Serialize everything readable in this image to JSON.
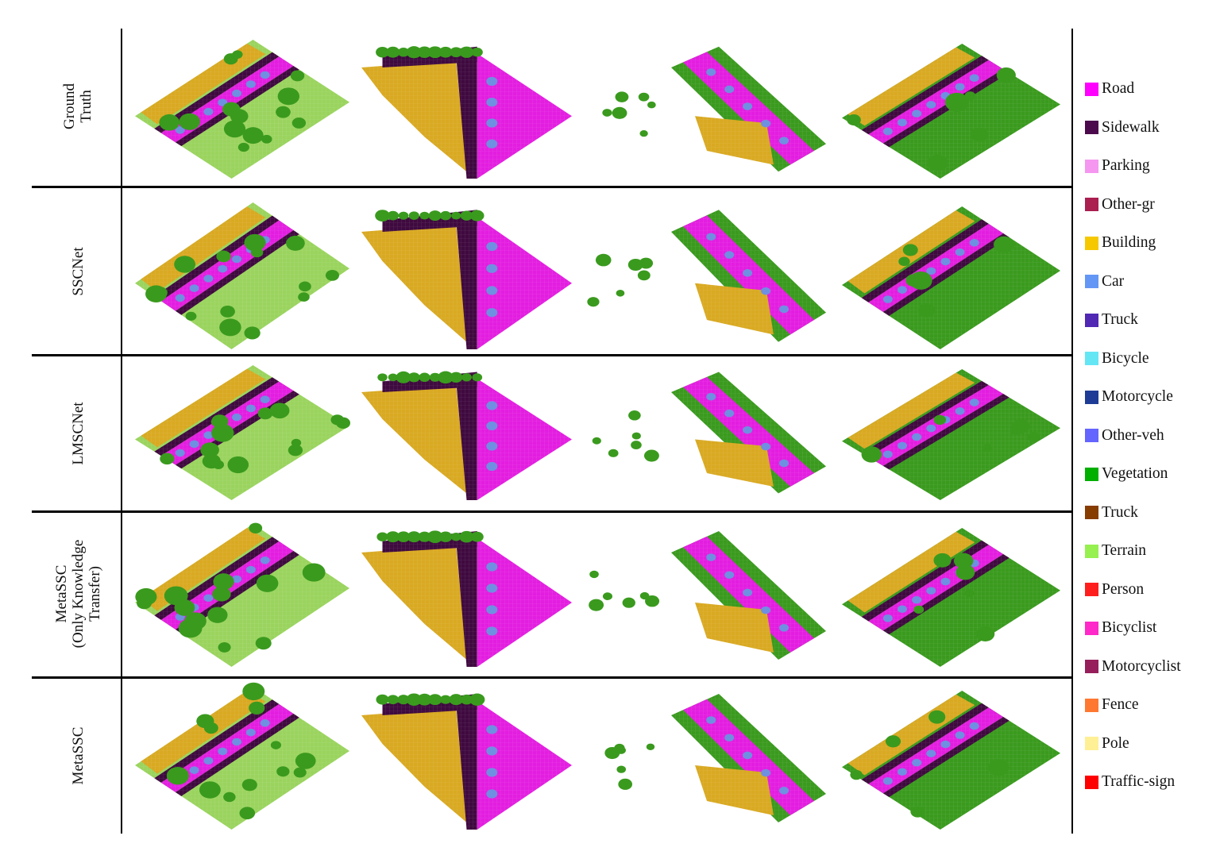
{
  "rows": [
    {
      "label_lines": [
        "Ground",
        "Truth"
      ]
    },
    {
      "label_lines": [
        "SSCNet"
      ]
    },
    {
      "label_lines": [
        "LMSCNet"
      ]
    },
    {
      "label_lines": [
        "MetaSSC",
        "(Only Knowledge",
        "Transfer)"
      ]
    },
    {
      "label_lines": [
        "MetaSSC"
      ]
    }
  ],
  "legend": [
    {
      "label": "Road",
      "color": "#ff00ff"
    },
    {
      "label": "Sidewalk",
      "color": "#4b0a4b"
    },
    {
      "label": "Parking",
      "color": "#f596f0"
    },
    {
      "label": "Other-gr",
      "color": "#aa1e50"
    },
    {
      "label": "Building",
      "color": "#f5c800"
    },
    {
      "label": "Car",
      "color": "#6496f5"
    },
    {
      "label": "Truck",
      "color": "#5028b4"
    },
    {
      "label": "Bicycle",
      "color": "#64e6f5"
    },
    {
      "label": "Motorcycle",
      "color": "#1e3c96"
    },
    {
      "label": "Other-veh",
      "color": "#6464ff"
    },
    {
      "label": "Vegetation",
      "color": "#00af00"
    },
    {
      "label": "Truck",
      "color": "#873c00"
    },
    {
      "label": "Terrain",
      "color": "#96f050"
    },
    {
      "label": "Person",
      "color": "#ff1e1e"
    },
    {
      "label": "Bicyclist",
      "color": "#ff28c8"
    },
    {
      "label": "Motorcyclist",
      "color": "#961e5a"
    },
    {
      "label": "Fence",
      "color": "#ff7832"
    },
    {
      "label": "Pole",
      "color": "#fff096"
    },
    {
      "label": "Traffic-sign",
      "color": "#ff0000"
    }
  ],
  "render_colors": {
    "road": "#e31ee0",
    "sidewalk": "#3f0a3f",
    "building": "#d9a922",
    "vegetation": "#3a9a1e",
    "terrain": "#9ad45e",
    "car": "#6f8fe0",
    "parking": "#f0a0ec"
  }
}
